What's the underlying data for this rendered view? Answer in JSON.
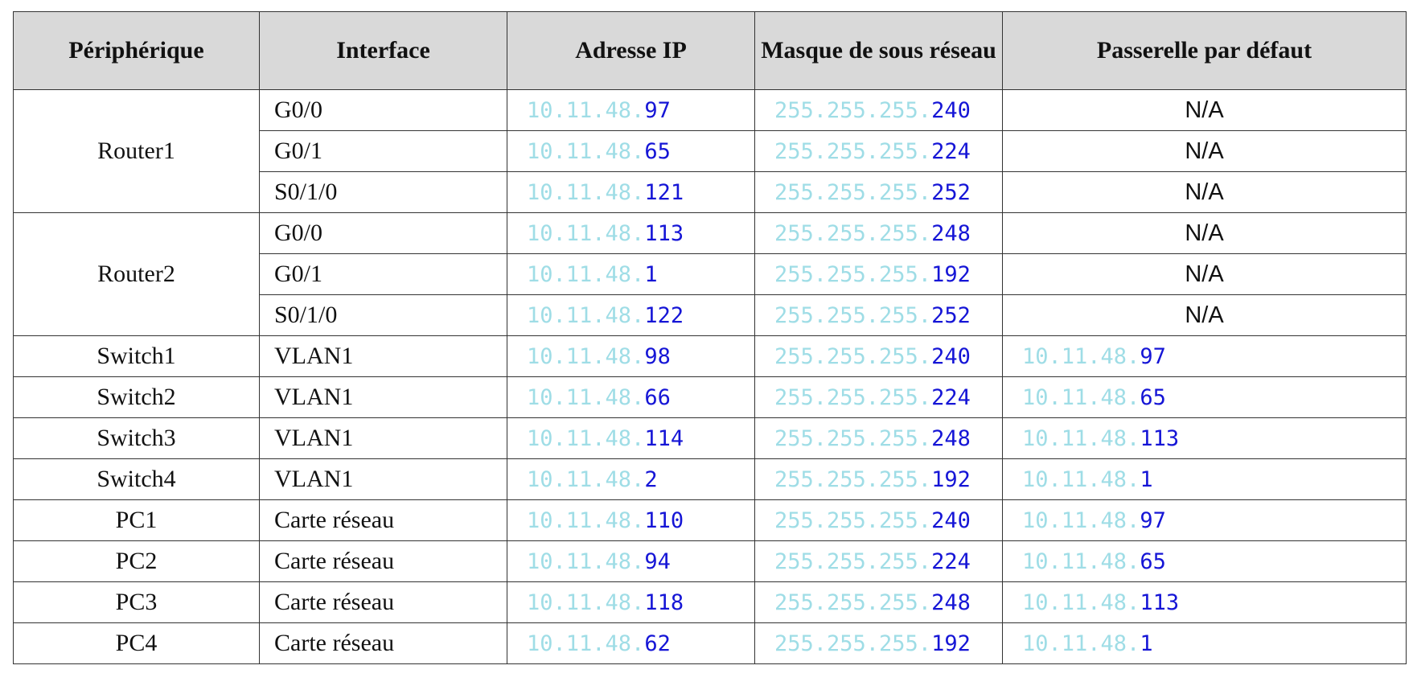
{
  "headers": {
    "device": "Périphérique",
    "interface": "Interface",
    "ip": "Adresse IP",
    "mask": "Masque de sous réseau",
    "gateway": "Passerelle par défaut"
  },
  "colors": {
    "address_prefix": "#9fdde6",
    "address_suffix": "#1515d6",
    "header_background": "#d9d9d9"
  },
  "devices": [
    {
      "name": "Router1",
      "interfaces": [
        {
          "name": "G0/0",
          "ip_prefix": "10.11.48.",
          "ip_suffix": "97",
          "mask_prefix": "255.255.255.",
          "mask_suffix": "240",
          "gateway": "N/A"
        },
        {
          "name": "G0/1",
          "ip_prefix": "10.11.48.",
          "ip_suffix": "65",
          "mask_prefix": "255.255.255.",
          "mask_suffix": "224",
          "gateway": "N/A"
        },
        {
          "name": "S0/1/0",
          "ip_prefix": "10.11.48.",
          "ip_suffix": "121",
          "mask_prefix": "255.255.255.",
          "mask_suffix": "252",
          "gateway": "N/A"
        }
      ]
    },
    {
      "name": "Router2",
      "interfaces": [
        {
          "name": "G0/0",
          "ip_prefix": "10.11.48.",
          "ip_suffix": "113",
          "mask_prefix": "255.255.255.",
          "mask_suffix": "248",
          "gateway": "N/A"
        },
        {
          "name": "G0/1",
          "ip_prefix": "10.11.48.",
          "ip_suffix": "1",
          "mask_prefix": "255.255.255.",
          "mask_suffix": "192",
          "gateway": "N/A"
        },
        {
          "name": "S0/1/0",
          "ip_prefix": "10.11.48.",
          "ip_suffix": "122",
          "mask_prefix": "255.255.255.",
          "mask_suffix": "252",
          "gateway": "N/A"
        }
      ]
    },
    {
      "name": "Switch1",
      "interfaces": [
        {
          "name": "VLAN1",
          "ip_prefix": "10.11.48.",
          "ip_suffix": "98",
          "mask_prefix": "255.255.255.",
          "mask_suffix": "240",
          "gw_prefix": "10.11.48.",
          "gw_suffix": "97"
        }
      ]
    },
    {
      "name": "Switch2",
      "interfaces": [
        {
          "name": "VLAN1",
          "ip_prefix": "10.11.48.",
          "ip_suffix": "66",
          "mask_prefix": "255.255.255.",
          "mask_suffix": "224",
          "gw_prefix": "10.11.48.",
          "gw_suffix": "65"
        }
      ]
    },
    {
      "name": "Switch3",
      "interfaces": [
        {
          "name": "VLAN1",
          "ip_prefix": "10.11.48.",
          "ip_suffix": "114",
          "mask_prefix": "255.255.255.",
          "mask_suffix": "248",
          "gw_prefix": "10.11.48.",
          "gw_suffix": "113"
        }
      ]
    },
    {
      "name": "Switch4",
      "interfaces": [
        {
          "name": "VLAN1",
          "ip_prefix": "10.11.48.",
          "ip_suffix": "2",
          "mask_prefix": "255.255.255.",
          "mask_suffix": "192",
          "gw_prefix": "10.11.48.",
          "gw_suffix": "1"
        }
      ]
    },
    {
      "name": "PC1",
      "interfaces": [
        {
          "name": "Carte réseau",
          "ip_prefix": "10.11.48.",
          "ip_suffix": "110",
          "mask_prefix": "255.255.255.",
          "mask_suffix": "240",
          "gw_prefix": "10.11.48.",
          "gw_suffix": "97"
        }
      ]
    },
    {
      "name": "PC2",
      "interfaces": [
        {
          "name": "Carte réseau",
          "ip_prefix": "10.11.48.",
          "ip_suffix": "94",
          "mask_prefix": "255.255.255.",
          "mask_suffix": "224",
          "gw_prefix": "10.11.48.",
          "gw_suffix": "65"
        }
      ]
    },
    {
      "name": "PC3",
      "interfaces": [
        {
          "name": "Carte réseau",
          "ip_prefix": "10.11.48.",
          "ip_suffix": "118",
          "mask_prefix": "255.255.255.",
          "mask_suffix": "248",
          "gw_prefix": "10.11.48.",
          "gw_suffix": "113"
        }
      ]
    },
    {
      "name": "PC4",
      "interfaces": [
        {
          "name": "Carte réseau",
          "ip_prefix": "10.11.48.",
          "ip_suffix": "62",
          "mask_prefix": "255.255.255.",
          "mask_suffix": "192",
          "gw_prefix": "10.11.48.",
          "gw_suffix": "1"
        }
      ]
    }
  ]
}
